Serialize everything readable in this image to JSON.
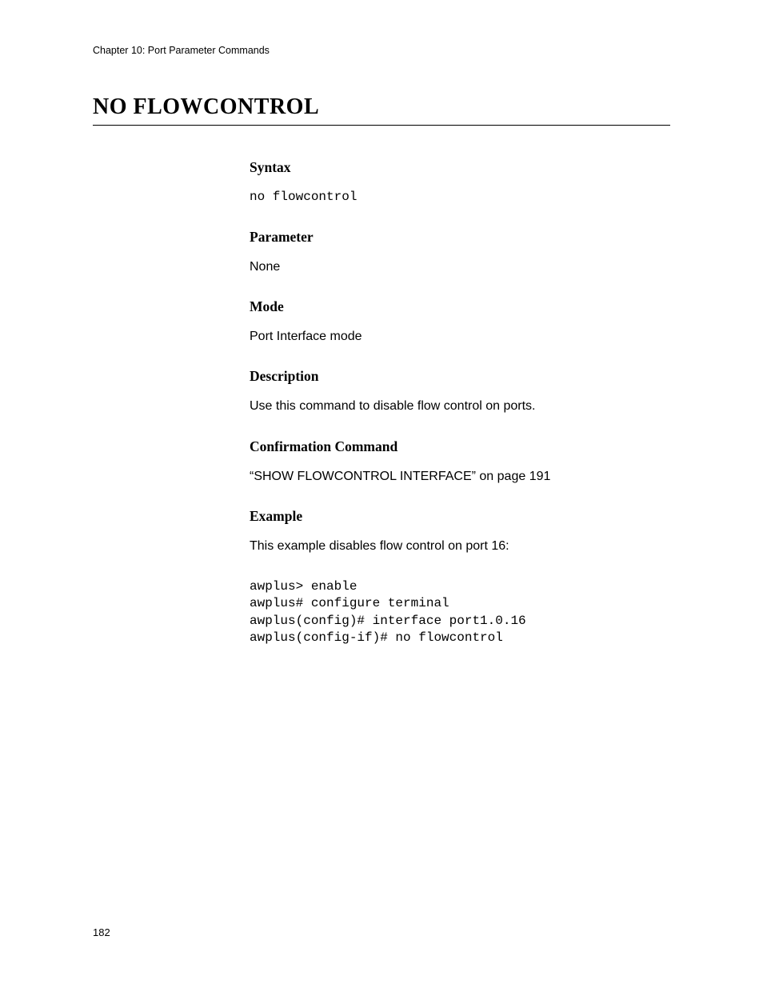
{
  "header": {
    "chapter": "Chapter 10: Port Parameter Commands"
  },
  "title": "NO FLOWCONTROL",
  "sections": {
    "syntax": {
      "heading": "Syntax",
      "body": "no flowcontrol"
    },
    "parameter": {
      "heading": "Parameter",
      "body": "None"
    },
    "mode": {
      "heading": "Mode",
      "body": "Port Interface mode"
    },
    "description": {
      "heading": "Description",
      "body": "Use this command to disable flow control on ports."
    },
    "confirmation": {
      "heading": "Confirmation Command",
      "body": "“SHOW FLOWCONTROL INTERFACE” on page 191"
    },
    "example": {
      "heading": "Example",
      "intro": "This example disables flow control on port 16:",
      "code": "awplus> enable\nawplus# configure terminal\nawplus(config)# interface port1.0.16\nawplus(config-if)# no flowcontrol"
    }
  },
  "footer": {
    "page_number": "182"
  }
}
